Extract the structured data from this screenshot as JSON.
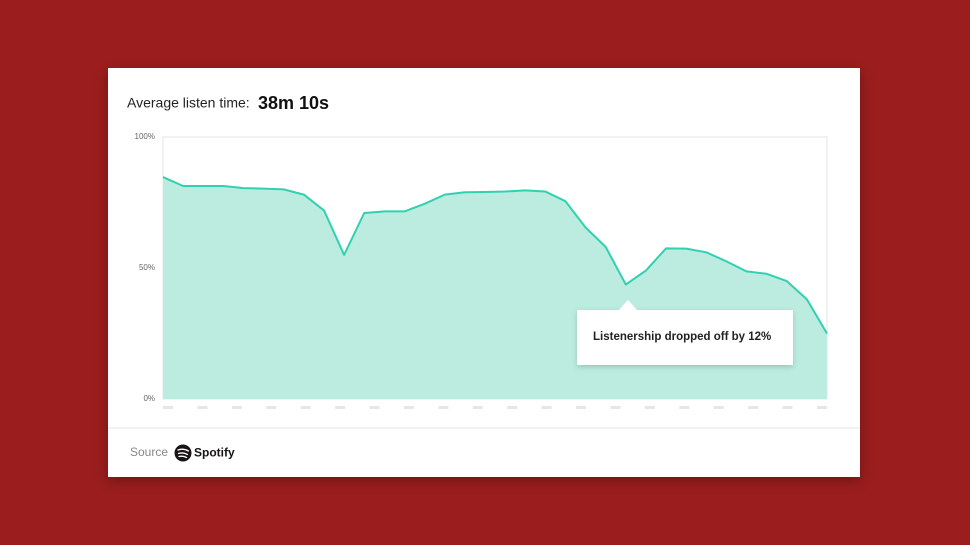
{
  "chart_data": {
    "type": "area",
    "title": "Average listen time:",
    "subtitle": "38m 10s",
    "annotation": "Listenership dropped off by 12%",
    "source_label": "Source",
    "source_name": "Spotify",
    "values": [
      84.7,
      81.3,
      81.3,
      81.3,
      80.5,
      80.3,
      80,
      78,
      72,
      55,
      71,
      71.6,
      71.6,
      74.5,
      78,
      78.9,
      79,
      79.2,
      79.6,
      79.2,
      75.5,
      65.5,
      58,
      43.7,
      49,
      57.5,
      57.4,
      56,
      52.5,
      48.7,
      47.8,
      45,
      38,
      25
    ],
    "color": "#2fd1b0",
    "fill": "#bcece0",
    "ylim": [
      0,
      100
    ],
    "yticks": [
      {
        "value": 0,
        "label": "0%"
      },
      {
        "value": 50,
        "label": "50%"
      },
      {
        "value": 100,
        "label": "100%"
      }
    ]
  }
}
